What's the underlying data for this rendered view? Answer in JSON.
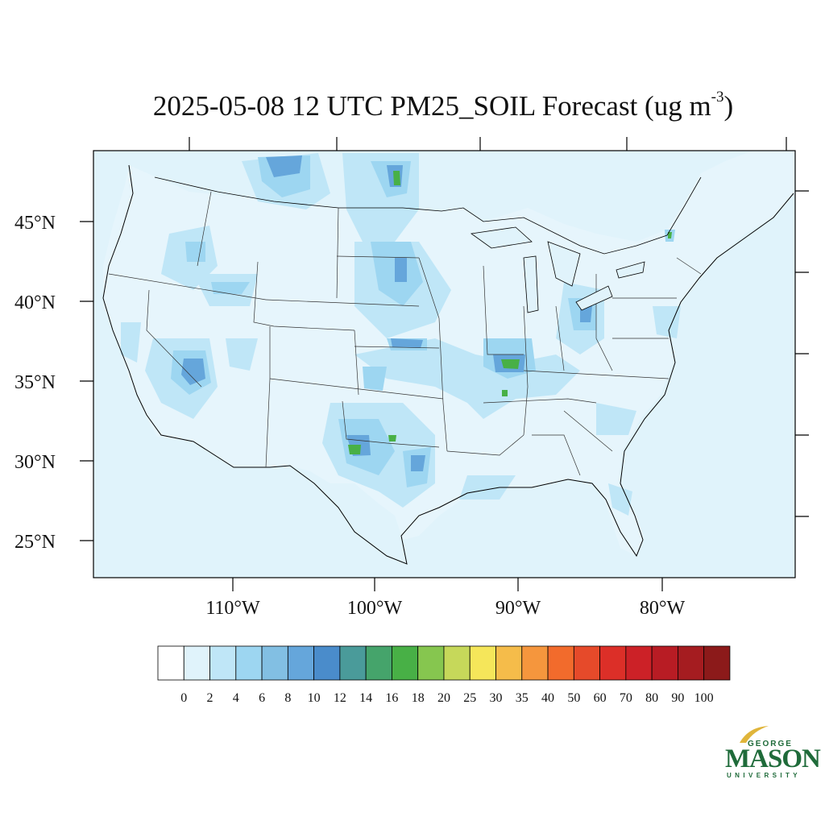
{
  "title": {
    "main": "2025-05-08 12 UTC PM25_SOIL Forecast (ug m",
    "exp": "-3",
    "close": ")"
  },
  "map": {
    "lat_labels": [
      "45°N",
      "40°N",
      "35°N",
      "30°N",
      "25°N"
    ],
    "lon_labels": [
      "110°W",
      "100°W",
      "90°W",
      "80°W"
    ],
    "ocean_color": "#e0f3fb",
    "boundary_color": "#000000"
  },
  "colorbar": {
    "labels": [
      "0",
      "2",
      "4",
      "6",
      "8",
      "10",
      "12",
      "14",
      "16",
      "18",
      "20",
      "25",
      "30",
      "35",
      "40",
      "50",
      "60",
      "70",
      "80",
      "90",
      "100"
    ],
    "colors": [
      "#ffffff",
      "#e0f3fb",
      "#bfe6f7",
      "#9dd6f1",
      "#82bfe3",
      "#65a6db",
      "#4a8ccb",
      "#4a9b9a",
      "#45a46b",
      "#48b046",
      "#86c64f",
      "#c6d85a",
      "#f5e65a",
      "#f5bc4a",
      "#f5963d",
      "#f26b2c",
      "#e64a2a",
      "#dc2f28",
      "#cc2127",
      "#b81c24",
      "#a51c20",
      "#8c1a1a"
    ]
  },
  "logo": {
    "line1": "GEORGE",
    "line2": "MASON",
    "line3": "UNIVERSITY",
    "color": "#1f6b3a",
    "accent": "#e0b53a"
  }
}
